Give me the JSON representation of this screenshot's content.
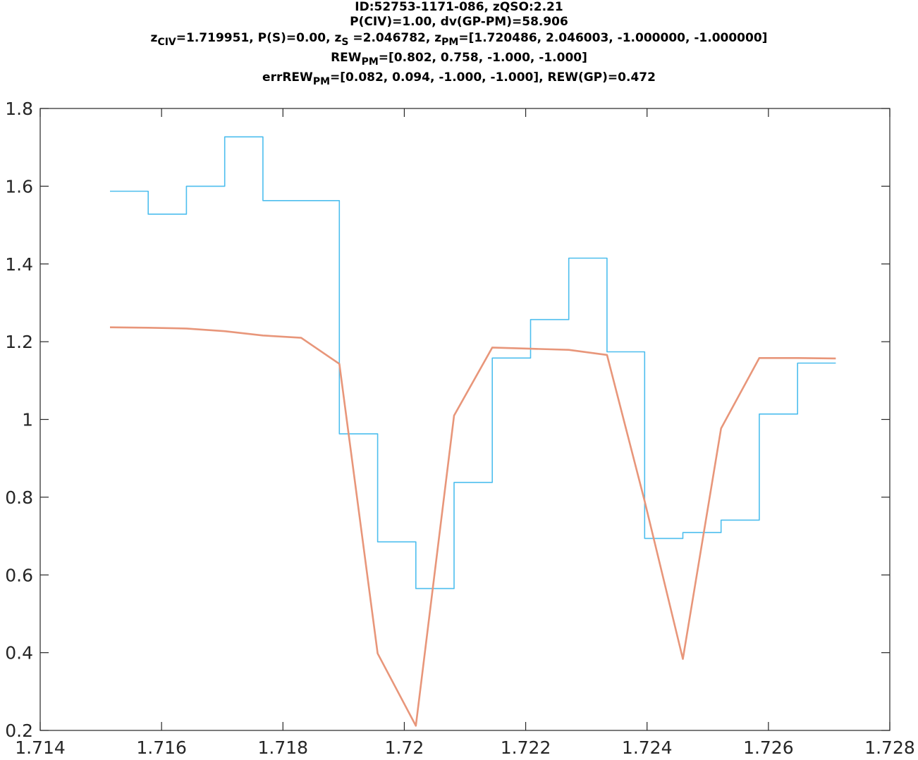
{
  "title_lines": {
    "line1": "ID:52753-1171-086, zQSO:2.21",
    "line2": "P(CIV)=1.00, dv(GP-PM)=58.906",
    "line3": {
      "z_prefix": "z",
      "z_sub": "CIV",
      "part_a": "=1.719951, P(S)=0.00, z",
      "zs_sub": "S",
      "part_b": " =2.046782, z",
      "zpm_sub": "PM",
      "part_c": "=[1.720486, 2.046003, -1.000000, -1.000000]"
    },
    "line4": {
      "prefix": "REW",
      "sub": "PM",
      "rest": "=[0.802, 0.758, -1.000, -1.000]"
    },
    "line5": {
      "prefix": "errREW",
      "sub": "PM",
      "rest": "=[0.082, 0.094, -1.000, -1.000], REW(GP)=0.472"
    }
  },
  "chart_data": {
    "type": "line",
    "xlim": [
      1.714,
      1.728
    ],
    "ylim": [
      0.2,
      1.8
    ],
    "x_ticks": [
      1.714,
      1.716,
      1.718,
      1.72,
      1.722,
      1.724,
      1.726,
      1.728
    ],
    "x_tick_labels": [
      "1.714",
      "1.716",
      "1.718",
      "1.72",
      "1.722",
      "1.724",
      "1.726",
      "1.728"
    ],
    "y_ticks": [
      0.2,
      0.4,
      0.6,
      0.8,
      1.0,
      1.2,
      1.4,
      1.6,
      1.8
    ],
    "y_tick_labels": [
      "0.2",
      "0.4",
      "0.6",
      "0.8",
      "1",
      "1.2",
      "1.4",
      "1.6",
      "1.8"
    ],
    "grid": false,
    "series": [
      {
        "style": "stairs",
        "color": "#4DBEEE",
        "edges": [
          1.71515,
          1.71578,
          1.71641,
          1.71704,
          1.71767,
          1.7183,
          1.71893,
          1.71956,
          1.72019,
          1.72082,
          1.72145,
          1.72208,
          1.72271,
          1.72334,
          1.72396,
          1.72459,
          1.72522,
          1.72585,
          1.72648,
          1.72711
        ],
        "values": [
          1.587,
          1.528,
          1.6,
          1.727,
          1.563,
          1.563,
          0.963,
          0.685,
          0.565,
          0.838,
          1.158,
          1.257,
          1.415,
          1.174,
          0.694,
          0.709,
          0.741,
          1.014,
          1.145
        ]
      },
      {
        "style": "line",
        "color": "#E8967A",
        "x": [
          1.71515,
          1.71578,
          1.71641,
          1.71704,
          1.71767,
          1.7183,
          1.71893,
          1.71956,
          1.72019,
          1.72082,
          1.72145,
          1.72208,
          1.72271,
          1.72334,
          1.72396,
          1.72459,
          1.72522,
          1.72585,
          1.72648,
          1.72711
        ],
        "y": [
          1.237,
          1.236,
          1.234,
          1.227,
          1.216,
          1.21,
          1.143,
          0.398,
          0.212,
          1.01,
          1.185,
          1.182,
          1.179,
          1.166,
          0.79,
          0.384,
          0.977,
          1.158,
          1.158,
          1.157
        ]
      }
    ]
  }
}
